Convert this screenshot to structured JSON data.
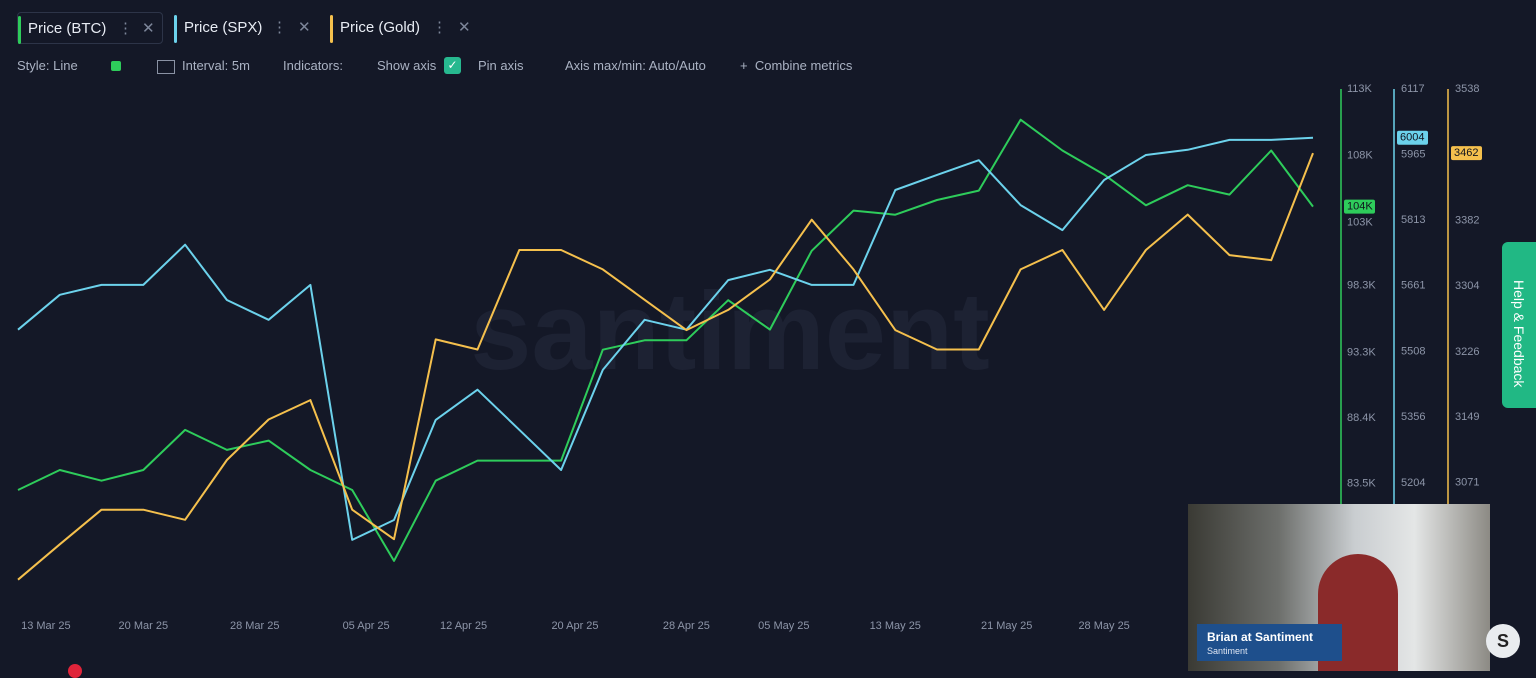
{
  "chart_data": {
    "type": "line",
    "x": [
      "2025-03-11",
      "2025-03-14",
      "2025-03-17",
      "2025-03-20",
      "2025-03-23",
      "2025-03-26",
      "2025-03-29",
      "2025-04-01",
      "2025-04-04",
      "2025-04-07",
      "2025-04-10",
      "2025-04-13",
      "2025-04-16",
      "2025-04-19",
      "2025-04-22",
      "2025-04-25",
      "2025-04-28",
      "2025-05-01",
      "2025-05-04",
      "2025-05-07",
      "2025-05-10",
      "2025-05-13",
      "2025-05-16",
      "2025-05-19",
      "2025-05-22",
      "2025-05-25",
      "2025-05-28",
      "2025-05-31",
      "2025-06-03",
      "2025-06-06",
      "2025-06-09",
      "2025-06-12"
    ],
    "xlim": [
      "2025-03-11",
      "2025-06-12"
    ],
    "xticks": [
      {
        "value": "2025-03-13",
        "label": "13 Mar 25"
      },
      {
        "value": "2025-03-20",
        "label": "20 Mar 25"
      },
      {
        "value": "2025-03-28",
        "label": "28 Mar 25"
      },
      {
        "value": "2025-04-05",
        "label": "05 Apr 25"
      },
      {
        "value": "2025-04-12",
        "label": "12 Apr 25"
      },
      {
        "value": "2025-04-20",
        "label": "20 Apr 25"
      },
      {
        "value": "2025-04-28",
        "label": "28 Apr 25"
      },
      {
        "value": "2025-05-05",
        "label": "05 May 25"
      },
      {
        "value": "2025-05-13",
        "label": "13 May 25"
      },
      {
        "value": "2025-05-21",
        "label": "21 May 25"
      },
      {
        "value": "2025-05-28",
        "label": "28 May 25"
      }
    ],
    "ylim": [
      74400,
      113000
    ],
    "yticks": [
      {
        "value": 113000,
        "label": "113K"
      },
      {
        "value": 108000,
        "label": "108K"
      },
      {
        "value": 103000,
        "label": "103K"
      },
      {
        "value": 98300,
        "label": "98.3K"
      },
      {
        "value": 93300,
        "label": "93.3K"
      },
      {
        "value": 88400,
        "label": "88.4K"
      },
      {
        "value": 83500,
        "label": "83.5K"
      }
    ],
    "y2lim": [
      4921,
      6117
    ],
    "y2ticks": [
      6117,
      5965,
      5813,
      5661,
      5508,
      5356,
      5204
    ],
    "y3lim": [
      2926,
      3538
    ],
    "y3ticks": [
      3538,
      3382,
      3304,
      3226,
      3149,
      3071
    ],
    "series": [
      {
        "name": "Price (BTC)",
        "color": "#2ecc5b",
        "axis": "y",
        "last_label": "104K",
        "values": [
          83000,
          84500,
          83700,
          84500,
          87500,
          86000,
          86700,
          84500,
          83000,
          77700,
          83700,
          85200,
          85200,
          85200,
          93500,
          94200,
          94200,
          97200,
          95000,
          100900,
          103900,
          103600,
          104700,
          105400,
          110700,
          108400,
          106600,
          104300,
          105800,
          105100,
          108400,
          104200
        ]
      },
      {
        "name": "Price (SPX)",
        "color": "#6cd2ec",
        "axis": "y2",
        "last_label": "6004",
        "values": [
          5559,
          5640,
          5663,
          5663,
          5756,
          5628,
          5582,
          5663,
          5072,
          5118,
          5350,
          5420,
          5327,
          5234,
          5466,
          5582,
          5559,
          5674,
          5698,
          5663,
          5663,
          5883,
          5918,
          5952,
          5848,
          5790,
          5906,
          5964,
          5976,
          5999,
          5999,
          6004
        ]
      },
      {
        "name": "Price (Gold)",
        "color": "#f5c04d",
        "axis": "y3",
        "last_label": "3462",
        "values": [
          2956,
          2998,
          3039,
          3039,
          3027,
          3098,
          3146,
          3169,
          3039,
          3004,
          3241,
          3229,
          3347,
          3347,
          3324,
          3288,
          3252,
          3276,
          3312,
          3383,
          3324,
          3252,
          3229,
          3229,
          3324,
          3347,
          3276,
          3347,
          3389,
          3341,
          3335,
          3462
        ]
      }
    ]
  },
  "toolbar": {
    "style": "Style: Line",
    "interval": "Interval: 5m",
    "indicators": "Indicators:",
    "show_axis": "Show axis",
    "pin_axis": "Pin axis",
    "axis_range": "Axis max/min: Auto/Auto",
    "combine": "Combine metrics"
  },
  "watermark": "santiment",
  "help": "Help & Feedback",
  "webcam": {
    "name": "Brian at Santiment",
    "org": "Santiment"
  }
}
